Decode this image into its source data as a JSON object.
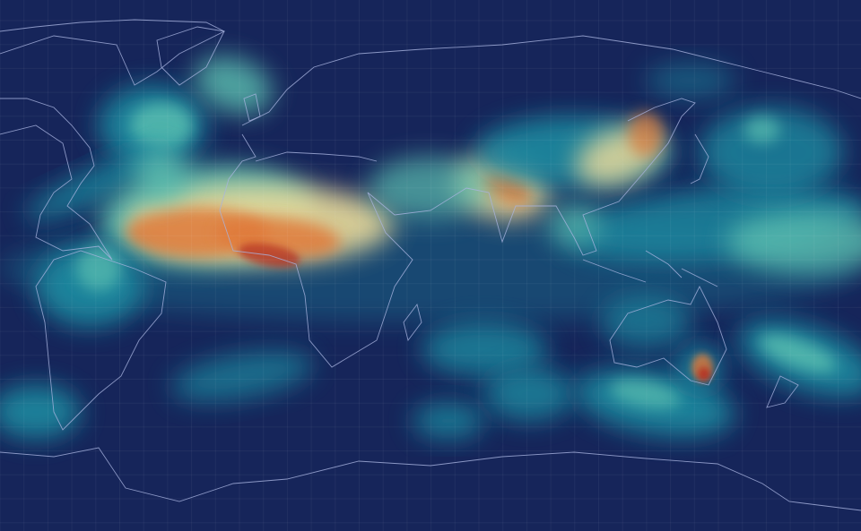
{
  "map": {
    "projection": "equirectangular",
    "type": "global aerosol field",
    "graticule": true,
    "colors": {
      "ocean_background": "#16255a",
      "low": "#1a2f6e",
      "teal": "#1f8aa0",
      "cyan": "#5cc0b0",
      "pale": "#e8d99a",
      "orange": "#e07a3a",
      "red": "#b52a1e",
      "coastline": "#a9b4e0"
    }
  }
}
